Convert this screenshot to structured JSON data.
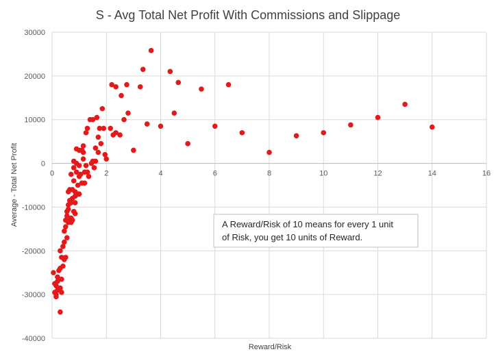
{
  "chart_data": {
    "type": "scatter",
    "title": "S - Avg Total Net Profit With Commissions and Slippage",
    "xlabel": "Reward/Risk",
    "ylabel": "Average - Total Net Profit",
    "xlim": [
      0,
      16
    ],
    "ylim": [
      -40000,
      30000
    ],
    "xticks": [
      0,
      2,
      4,
      6,
      8,
      10,
      12,
      14,
      16
    ],
    "yticks": [
      -40000,
      -30000,
      -20000,
      -10000,
      0,
      10000,
      20000,
      30000
    ],
    "grid": true,
    "marker_color": "#e31a1c",
    "annotation": {
      "lines": [
        "A Reward/Risk of 10 means for every 1 unit",
        "of Risk, you get 10 units of Reward."
      ]
    },
    "points": [
      {
        "x": 0.05,
        "y": -25000
      },
      {
        "x": 0.1,
        "y": -27500
      },
      {
        "x": 0.1,
        "y": -29500
      },
      {
        "x": 0.15,
        "y": -28000
      },
      {
        "x": 0.15,
        "y": -30000
      },
      {
        "x": 0.15,
        "y": -30500
      },
      {
        "x": 0.2,
        "y": -26000
      },
      {
        "x": 0.2,
        "y": -27000
      },
      {
        "x": 0.2,
        "y": -29000
      },
      {
        "x": 0.25,
        "y": -24500
      },
      {
        "x": 0.25,
        "y": -26500
      },
      {
        "x": 0.3,
        "y": -24000
      },
      {
        "x": 0.3,
        "y": -28500
      },
      {
        "x": 0.3,
        "y": -34000
      },
      {
        "x": 0.3,
        "y": -20000
      },
      {
        "x": 0.35,
        "y": -21500
      },
      {
        "x": 0.35,
        "y": -26500
      },
      {
        "x": 0.35,
        "y": -29500
      },
      {
        "x": 0.4,
        "y": -23500
      },
      {
        "x": 0.4,
        "y": -19000
      },
      {
        "x": 0.45,
        "y": -18000
      },
      {
        "x": 0.45,
        "y": -15500
      },
      {
        "x": 0.45,
        "y": -22000
      },
      {
        "x": 0.5,
        "y": -21500
      },
      {
        "x": 0.5,
        "y": -14500
      },
      {
        "x": 0.5,
        "y": -13000
      },
      {
        "x": 0.55,
        "y": -17000
      },
      {
        "x": 0.55,
        "y": -11000
      },
      {
        "x": 0.55,
        "y": -12000
      },
      {
        "x": 0.6,
        "y": -13500
      },
      {
        "x": 0.6,
        "y": -9500
      },
      {
        "x": 0.6,
        "y": -10500
      },
      {
        "x": 0.6,
        "y": -6500
      },
      {
        "x": 0.65,
        "y": -8500
      },
      {
        "x": 0.65,
        "y": -6000
      },
      {
        "x": 0.65,
        "y": -13000
      },
      {
        "x": 0.7,
        "y": -12500
      },
      {
        "x": 0.7,
        "y": -9000
      },
      {
        "x": 0.7,
        "y": -2500
      },
      {
        "x": 0.7,
        "y": -13500
      },
      {
        "x": 0.75,
        "y": -6000
      },
      {
        "x": 0.75,
        "y": -8000
      },
      {
        "x": 0.75,
        "y": -13000
      },
      {
        "x": 0.8,
        "y": 500
      },
      {
        "x": 0.8,
        "y": -1000
      },
      {
        "x": 0.8,
        "y": -4000
      },
      {
        "x": 0.8,
        "y": -11000
      },
      {
        "x": 0.85,
        "y": -6500
      },
      {
        "x": 0.85,
        "y": -9000
      },
      {
        "x": 0.85,
        "y": -7500
      },
      {
        "x": 0.85,
        "y": -11500
      },
      {
        "x": 0.9,
        "y": 3300
      },
      {
        "x": 0.9,
        "y": 0
      },
      {
        "x": 0.9,
        "y": -2000
      },
      {
        "x": 0.95,
        "y": -5000
      },
      {
        "x": 0.95,
        "y": -7000
      },
      {
        "x": 1.0,
        "y": -3000
      },
      {
        "x": 1.0,
        "y": -500
      },
      {
        "x": 1.0,
        "y": 3000
      },
      {
        "x": 1.0,
        "y": -7000
      },
      {
        "x": 1.05,
        "y": -2500
      },
      {
        "x": 1.1,
        "y": 3000
      },
      {
        "x": 1.1,
        "y": -4500
      },
      {
        "x": 1.15,
        "y": 4000
      },
      {
        "x": 1.15,
        "y": 2500
      },
      {
        "x": 1.15,
        "y": 1000
      },
      {
        "x": 1.2,
        "y": -2000
      },
      {
        "x": 1.2,
        "y": -4500
      },
      {
        "x": 1.25,
        "y": 7000
      },
      {
        "x": 1.25,
        "y": -500
      },
      {
        "x": 1.3,
        "y": -2000
      },
      {
        "x": 1.3,
        "y": 8000
      },
      {
        "x": 1.35,
        "y": -3000
      },
      {
        "x": 1.4,
        "y": 10000
      },
      {
        "x": 1.45,
        "y": 0
      },
      {
        "x": 1.5,
        "y": 10000
      },
      {
        "x": 1.5,
        "y": 500
      },
      {
        "x": 1.55,
        "y": -1000
      },
      {
        "x": 1.6,
        "y": 500
      },
      {
        "x": 1.6,
        "y": 3500
      },
      {
        "x": 1.65,
        "y": 10500
      },
      {
        "x": 1.7,
        "y": 6000
      },
      {
        "x": 1.7,
        "y": 2500
      },
      {
        "x": 1.75,
        "y": 8000
      },
      {
        "x": 1.8,
        "y": 4500
      },
      {
        "x": 1.85,
        "y": 12500
      },
      {
        "x": 1.9,
        "y": 8000
      },
      {
        "x": 1.95,
        "y": 2000
      },
      {
        "x": 2.0,
        "y": 1000
      },
      {
        "x": 2.15,
        "y": 8000
      },
      {
        "x": 2.2,
        "y": 18000
      },
      {
        "x": 2.25,
        "y": 6500
      },
      {
        "x": 2.35,
        "y": 17500
      },
      {
        "x": 2.35,
        "y": 7000
      },
      {
        "x": 2.5,
        "y": 6500
      },
      {
        "x": 2.55,
        "y": 15500
      },
      {
        "x": 2.65,
        "y": 10000
      },
      {
        "x": 2.75,
        "y": 18000
      },
      {
        "x": 2.8,
        "y": 11500
      },
      {
        "x": 3.0,
        "y": 3000
      },
      {
        "x": 3.25,
        "y": 17500
      },
      {
        "x": 3.35,
        "y": 21500
      },
      {
        "x": 3.5,
        "y": 9000
      },
      {
        "x": 3.65,
        "y": 25800
      },
      {
        "x": 4.0,
        "y": 8500
      },
      {
        "x": 4.35,
        "y": 21000
      },
      {
        "x": 4.5,
        "y": 11500
      },
      {
        "x": 4.65,
        "y": 18500
      },
      {
        "x": 5.0,
        "y": 4500
      },
      {
        "x": 5.5,
        "y": 17000
      },
      {
        "x": 6.0,
        "y": 8500
      },
      {
        "x": 6.5,
        "y": 18000
      },
      {
        "x": 7.0,
        "y": 7000
      },
      {
        "x": 8.0,
        "y": 2500
      },
      {
        "x": 9.0,
        "y": 6300
      },
      {
        "x": 10.0,
        "y": 7000
      },
      {
        "x": 11.0,
        "y": 8800
      },
      {
        "x": 12.0,
        "y": 10500
      },
      {
        "x": 13.0,
        "y": 13500
      },
      {
        "x": 14.0,
        "y": 8300
      }
    ]
  }
}
